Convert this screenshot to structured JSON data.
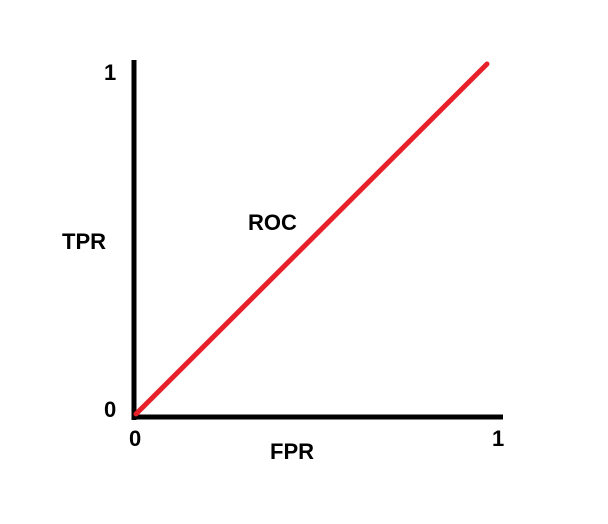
{
  "chart_data": {
    "type": "line",
    "title": "",
    "xlabel": "FPR",
    "ylabel": "TPR",
    "xlim": [
      0,
      1
    ],
    "ylim": [
      0,
      1
    ],
    "x_ticks": [
      "0",
      "1"
    ],
    "y_ticks": [
      "0",
      "1"
    ],
    "grid": false,
    "series": [
      {
        "name": "ROC",
        "color": "#e8202a",
        "x": [
          0,
          1
        ],
        "y": [
          0,
          1
        ]
      }
    ]
  },
  "colors": {
    "axis": "#000000",
    "background": "#ffffff"
  }
}
